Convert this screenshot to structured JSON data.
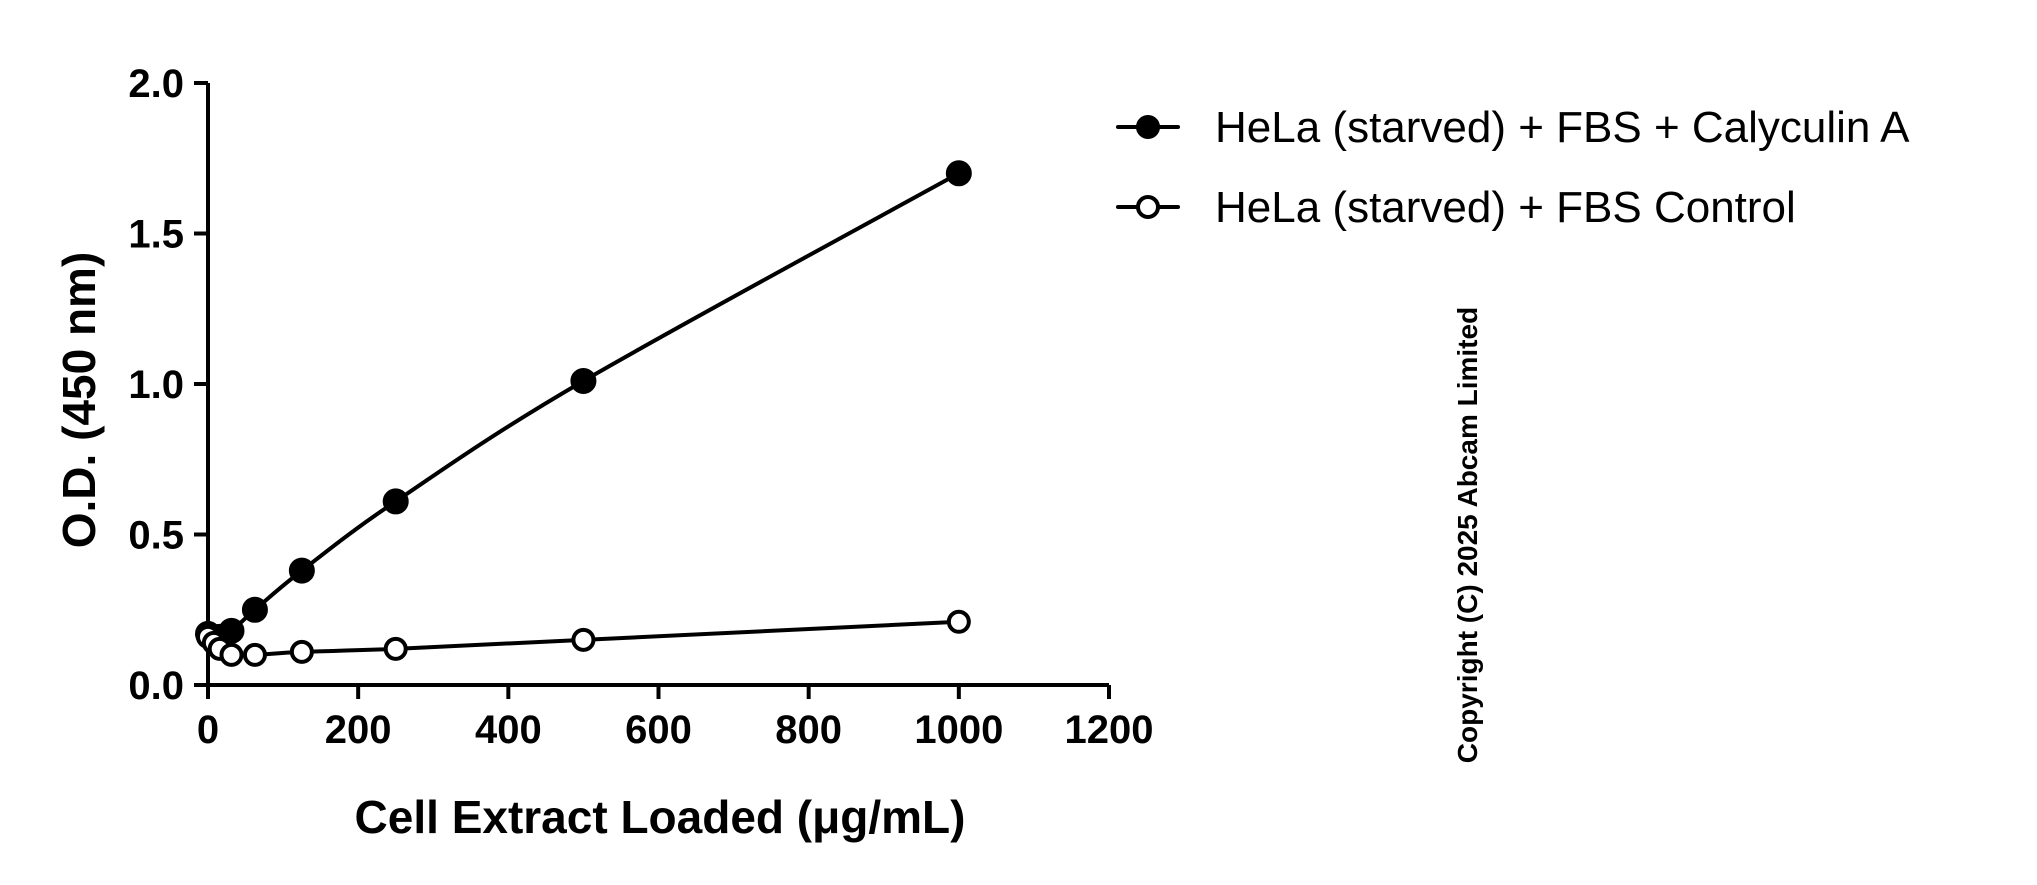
{
  "chart_data": {
    "type": "line",
    "xlabel": "Cell Extract Loaded (μg/mL)",
    "ylabel": "O.D. (450 nm)",
    "xlim": [
      0,
      1200
    ],
    "ylim": [
      0,
      2.0
    ],
    "xticks": [
      0,
      200,
      400,
      600,
      800,
      1000,
      1200
    ],
    "yticks": [
      0.0,
      0.5,
      1.0,
      1.5,
      2.0
    ],
    "xtick_labels": [
      "0",
      "200",
      "400",
      "600",
      "800",
      "1000",
      "1200"
    ],
    "ytick_labels": [
      "0.0",
      "0.5",
      "1.0",
      "1.5",
      "2.0"
    ],
    "grid": false,
    "legend_position": "top-right",
    "series": [
      {
        "name": "HeLa (starved) + FBS + Calyculin A",
        "marker": "filled-circle",
        "x": [
          0,
          7.8,
          15.6,
          31.3,
          62.5,
          125,
          250,
          500,
          1000
        ],
        "y": [
          0.17,
          0.16,
          0.16,
          0.18,
          0.25,
          0.38,
          0.61,
          1.01,
          1.7
        ]
      },
      {
        "name": "HeLa (starved) + FBS Control",
        "marker": "open-circle",
        "x": [
          0,
          7.8,
          15.6,
          31.3,
          62.5,
          125,
          250,
          500,
          1000
        ],
        "y": [
          0.16,
          0.14,
          0.12,
          0.1,
          0.1,
          0.11,
          0.12,
          0.15,
          0.21
        ]
      }
    ],
    "annotation": "Copyright (C) 2025 Abcam Limited"
  }
}
